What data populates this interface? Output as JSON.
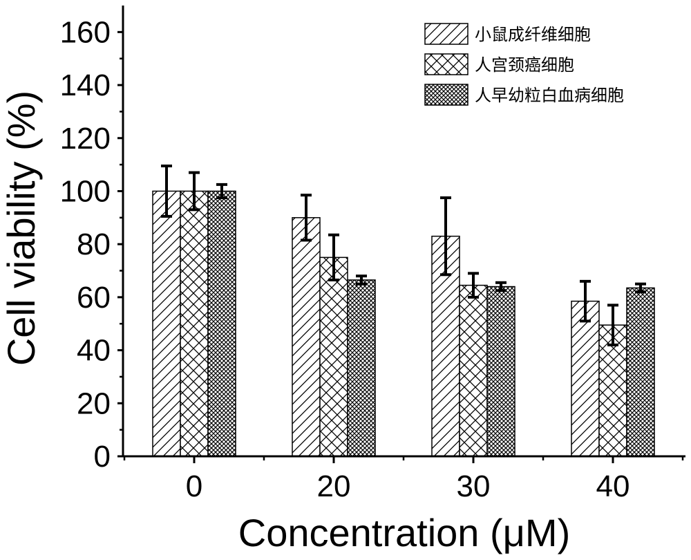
{
  "chart_data": {
    "type": "bar",
    "xlabel": "Concentration (μM)",
    "ylabel": "Cell viability (%)",
    "ylim": [
      0,
      170
    ],
    "yticks": [
      0,
      20,
      40,
      60,
      80,
      100,
      120,
      140,
      160
    ],
    "categories": [
      "0",
      "20",
      "30",
      "40"
    ],
    "legend_position": "top-right",
    "grid": false,
    "series": [
      {
        "name": "小鼠成纤维细胞",
        "pattern": "diagonal-hatch",
        "values": [
          100,
          90,
          83,
          58.5
        ],
        "errors": [
          9.5,
          8.5,
          14.5,
          7.5
        ]
      },
      {
        "name": "人宫颈癌细胞",
        "pattern": "crosshatch",
        "values": [
          100,
          75,
          64.5,
          49.5
        ],
        "errors": [
          7,
          8.5,
          4.5,
          7.5
        ]
      },
      {
        "name": "人早幼粒白血病细胞",
        "pattern": "dense-crosshatch",
        "values": [
          100,
          66.5,
          64,
          63.5
        ],
        "errors": [
          2.5,
          1.5,
          1.5,
          1.5
        ]
      }
    ]
  }
}
